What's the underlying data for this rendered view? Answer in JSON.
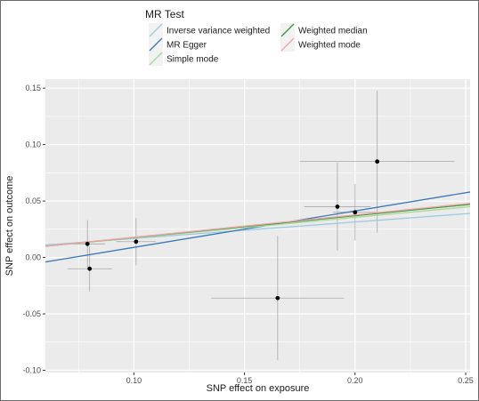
{
  "chart_data": {
    "type": "scatter",
    "title": "",
    "xlabel": "SNP effect on exposure",
    "ylabel": "SNP effect on outcome",
    "xlim": [
      0.06,
      0.252
    ],
    "ylim": [
      -0.102,
      0.158
    ],
    "x_ticks": [
      0.1,
      0.15,
      0.2,
      0.25
    ],
    "x_tick_labels": [
      "0.10",
      "0.15",
      "0.20",
      "0.25"
    ],
    "y_ticks": [
      -0.1,
      -0.05,
      0.0,
      0.05,
      0.1,
      0.15
    ],
    "y_tick_labels": [
      "-0.10",
      "-0.05",
      "0.00",
      "0.05",
      "0.10",
      "0.15"
    ],
    "grid": true,
    "legend": {
      "title": "MR Test",
      "placement": "top",
      "columns": [
        [
          "Inverse variance weighted",
          "MR Egger",
          "Simple mode"
        ],
        [
          "Weighted median",
          "Weighted mode"
        ]
      ]
    },
    "points": [
      {
        "x": 0.079,
        "y": 0.012,
        "x_lo": 0.072,
        "x_hi": 0.087,
        "y_lo": -0.009,
        "y_hi": 0.033
      },
      {
        "x": 0.08,
        "y": -0.01,
        "x_lo": 0.07,
        "x_hi": 0.09,
        "y_lo": -0.03,
        "y_hi": 0.01
      },
      {
        "x": 0.101,
        "y": 0.014,
        "x_lo": 0.092,
        "x_hi": 0.11,
        "y_lo": -0.007,
        "y_hi": 0.035
      },
      {
        "x": 0.165,
        "y": -0.036,
        "x_lo": 0.135,
        "x_hi": 0.195,
        "y_lo": -0.091,
        "y_hi": 0.019
      },
      {
        "x": 0.192,
        "y": 0.045,
        "x_lo": 0.177,
        "x_hi": 0.207,
        "y_lo": 0.006,
        "y_hi": 0.084
      },
      {
        "x": 0.2,
        "y": 0.04,
        "x_lo": 0.19,
        "x_hi": 0.21,
        "y_lo": 0.015,
        "y_hi": 0.065
      },
      {
        "x": 0.21,
        "y": 0.085,
        "x_lo": 0.175,
        "x_hi": 0.245,
        "y_lo": 0.022,
        "y_hi": 0.148
      }
    ],
    "series": [
      {
        "name": "Inverse variance weighted",
        "color": "#9ecae1",
        "x": [
          0.06,
          0.252
        ],
        "y": [
          0.011,
          0.039
        ]
      },
      {
        "name": "MR Egger",
        "color": "#3a78b8",
        "x": [
          0.06,
          0.252
        ],
        "y": [
          -0.004,
          0.058
        ]
      },
      {
        "name": "Simple mode",
        "color": "#a6d99a",
        "x": [
          0.06,
          0.252
        ],
        "y": [
          0.01,
          0.045
        ]
      },
      {
        "name": "Weighted median",
        "color": "#3a9a3a",
        "x": [
          0.06,
          0.252
        ],
        "y": [
          0.01,
          0.047
        ]
      },
      {
        "name": "Weighted mode",
        "color": "#f4a3a8",
        "x": [
          0.06,
          0.252
        ],
        "y": [
          0.01,
          0.048
        ]
      }
    ],
    "colors": {
      "panel": "#ebebeb",
      "grid": "#ffffff",
      "point": "#000000",
      "errorbar": "#a8a8a8"
    }
  }
}
